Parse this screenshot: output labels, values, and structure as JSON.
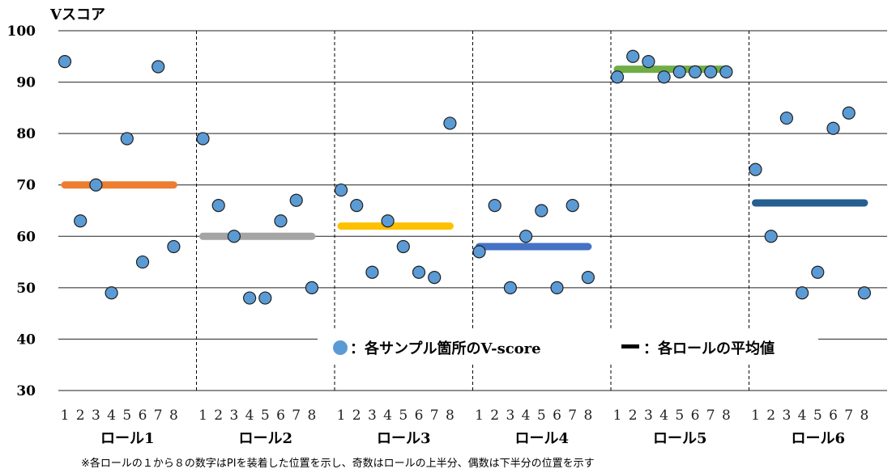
{
  "chart_data": {
    "type": "scatter",
    "ylabel": "Vスコア",
    "ylim": [
      30,
      100
    ],
    "yticks": [
      "30",
      "40",
      "50",
      "60",
      "70",
      "80",
      "90",
      "100"
    ],
    "grid": true,
    "position_labels": [
      "1",
      "2",
      "3",
      "4",
      "5",
      "6",
      "7",
      "8"
    ],
    "groups": [
      {
        "name": "ロール1",
        "values": [
          94,
          63,
          70,
          49,
          79,
          55,
          93,
          58
        ],
        "mean": 70,
        "color": "#ED7D31"
      },
      {
        "name": "ロール2",
        "values": [
          79,
          66,
          60,
          48,
          48,
          63,
          67,
          50
        ],
        "mean": 60,
        "color": "#A5A5A5"
      },
      {
        "name": "ロール3",
        "values": [
          69,
          66,
          53,
          63,
          58,
          53,
          52,
          82
        ],
        "mean": 62,
        "color": "#FFC000"
      },
      {
        "name": "ロール4",
        "values": [
          57,
          66,
          50,
          60,
          65,
          50,
          66,
          52
        ],
        "mean": 58,
        "color": "#4472C4"
      },
      {
        "name": "ロール5",
        "values": [
          91,
          95,
          94,
          91,
          92,
          92,
          92,
          92
        ],
        "mean": 92.5,
        "color": "#70AD47"
      },
      {
        "name": "ロール6",
        "values": [
          73,
          60,
          83,
          49,
          53,
          81,
          84,
          49
        ],
        "mean": 66.5,
        "color": "#255E91"
      }
    ],
    "point_color": "#5B9BD5",
    "legend": {
      "placement": "bottom-center",
      "points_label": "：各サンプル箇所のV-score",
      "mean_label": "：各ロールの平均値"
    }
  },
  "footnote": "※各ロールの１から８の数字はPIを装着した位置を示し、奇数はロールの上半分、偶数は下半分の位置を示す"
}
